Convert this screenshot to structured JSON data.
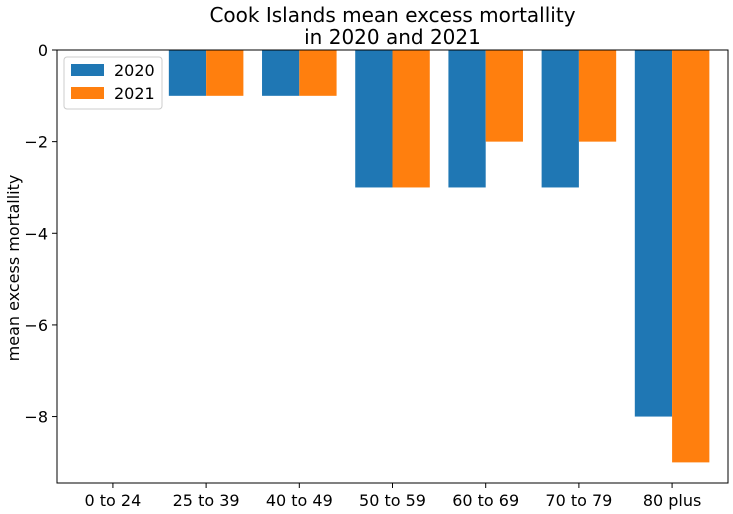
{
  "chart_data": {
    "type": "bar",
    "title": "Cook Islands mean excess mortallity\nin 2020 and 2021",
    "xlabel": "",
    "ylabel": "mean excess mortallity",
    "categories": [
      "0 to 24",
      "25 to 39",
      "40 to 49",
      "50 to 59",
      "60 to 69",
      "70 to 79",
      "80 plus"
    ],
    "series": [
      {
        "name": "2020",
        "color": "#1f77b4",
        "values": [
          0,
          -1,
          -1,
          -3,
          -3,
          -3,
          -8
        ]
      },
      {
        "name": "2021",
        "color": "#ff7f0e",
        "values": [
          0,
          -1,
          -1,
          -3,
          -2,
          -2,
          -9
        ]
      }
    ],
    "ylim": [
      -9.45,
      0
    ],
    "yticks": [
      0,
      -2,
      -4,
      -6,
      -8
    ],
    "grid": false,
    "legend_position": "top-left"
  }
}
